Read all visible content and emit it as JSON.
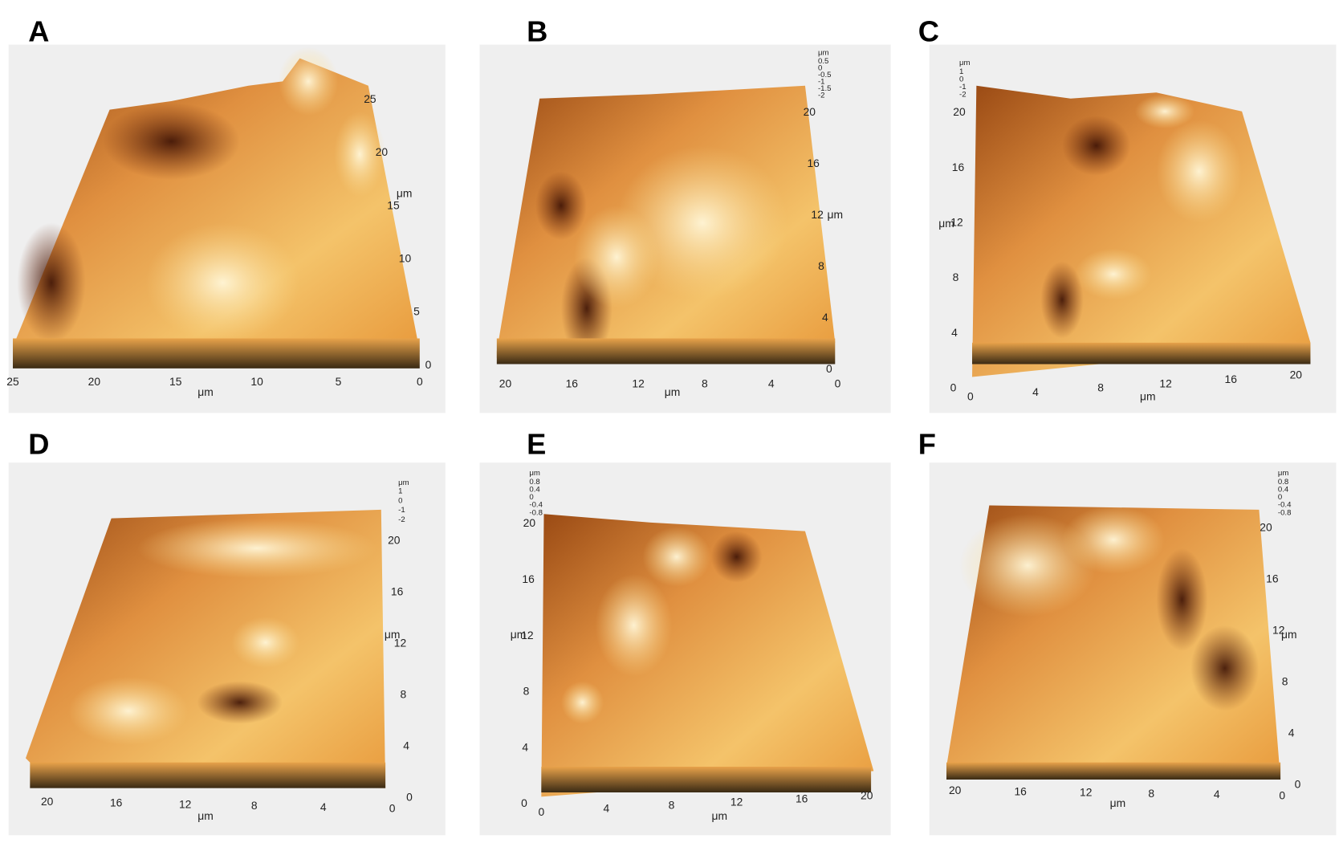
{
  "panels": [
    {
      "label": "A",
      "x_axis": {
        "unit": "μm",
        "ticks": [
          0,
          5,
          10,
          15,
          20,
          25
        ]
      },
      "y_axis": {
        "unit": "μm",
        "ticks": [
          0,
          5,
          10,
          15,
          20,
          25
        ]
      }
    },
    {
      "label": "B",
      "x_axis": {
        "unit": "μm",
        "ticks": [
          0,
          4,
          8,
          12,
          16,
          20
        ]
      },
      "y_axis": {
        "unit": "μm",
        "ticks": [
          0,
          4,
          8,
          12,
          16,
          20
        ]
      },
      "z_axis": {
        "unit": "μm",
        "ticks": [
          0.5,
          0,
          -0.5,
          -1,
          -1.5,
          -2
        ]
      }
    },
    {
      "label": "C",
      "x_axis": {
        "unit": "μm",
        "ticks": [
          0,
          4,
          8,
          12,
          16,
          20
        ]
      },
      "y_axis": {
        "unit": "μm",
        "ticks": [
          0,
          4,
          8,
          12,
          16,
          20
        ]
      },
      "z_axis": {
        "unit": "μm",
        "ticks": [
          1,
          0,
          -1,
          -2
        ]
      }
    },
    {
      "label": "D",
      "x_axis": {
        "unit": "μm",
        "ticks": [
          0,
          4,
          8,
          12,
          16,
          20
        ]
      },
      "y_axis": {
        "unit": "μm",
        "ticks": [
          0,
          4,
          8,
          12,
          16,
          20
        ]
      },
      "z_axis": {
        "unit": "μm",
        "ticks": [
          1,
          0,
          -1,
          -2
        ]
      }
    },
    {
      "label": "E",
      "x_axis": {
        "unit": "μm",
        "ticks": [
          0,
          4,
          8,
          12,
          16,
          20
        ]
      },
      "y_axis": {
        "unit": "μm",
        "ticks": [
          0,
          4,
          8,
          12,
          16,
          20
        ]
      },
      "z_axis": {
        "unit": "μm",
        "ticks": [
          0.8,
          0.4,
          0,
          -0.4,
          -0.8
        ]
      }
    },
    {
      "label": "F",
      "x_axis": {
        "unit": "μm",
        "ticks": [
          0,
          4,
          8,
          12,
          16,
          20
        ]
      },
      "y_axis": {
        "unit": "μm",
        "ticks": [
          0,
          4,
          8,
          12,
          16,
          20
        ]
      },
      "z_axis": {
        "unit": "μm",
        "ticks": [
          0.8,
          0.4,
          0,
          -0.4,
          -0.8
        ]
      }
    }
  ]
}
